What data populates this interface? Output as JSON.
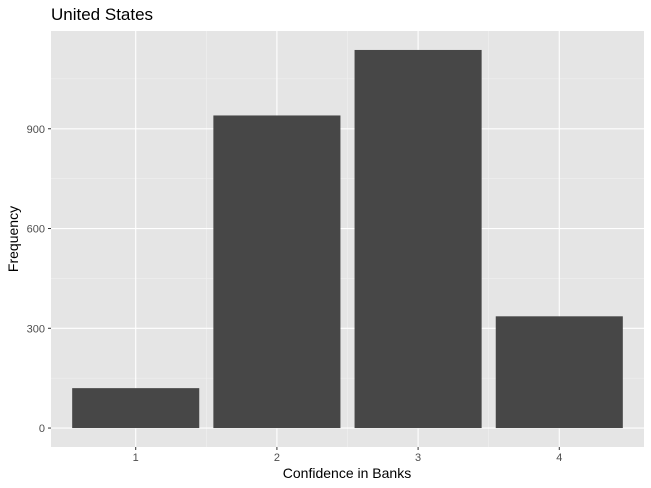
{
  "chart_data": {
    "type": "bar",
    "title": "United States",
    "xlabel": "Confidence in Banks",
    "ylabel": "Frequency",
    "categories": [
      "1",
      "2",
      "3",
      "4"
    ],
    "values": [
      120,
      940,
      1137,
      336
    ],
    "yticks": [
      0,
      300,
      600,
      900
    ],
    "ylim": [
      -57,
      1194
    ],
    "grid": true,
    "legend": "none",
    "colors": {
      "bar": "#474747",
      "panel": "#e5e5e5",
      "grid_major": "#ffffff",
      "grid_minor": "#f0f0f0",
      "tick_text": "#4d4d4d",
      "tick_mark": "#333333"
    }
  }
}
